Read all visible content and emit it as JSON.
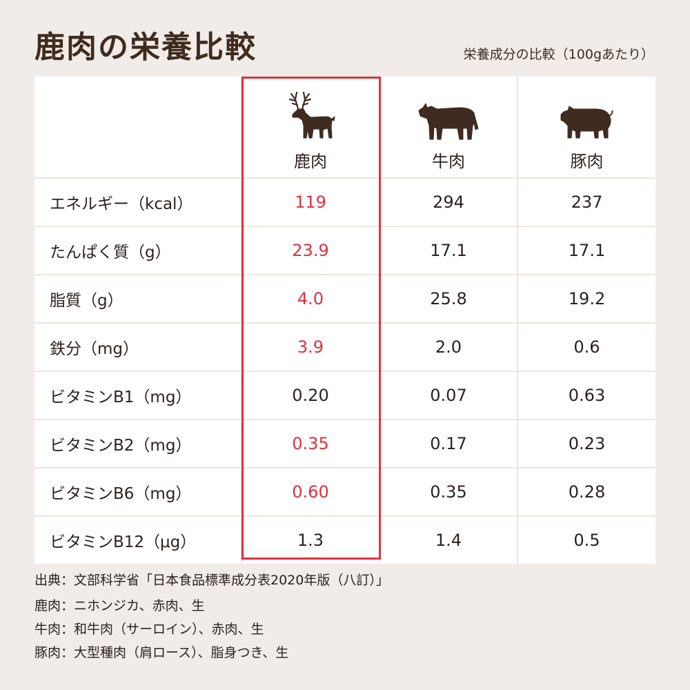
{
  "title": "鹿肉の栄養比較",
  "subtitle": "栄養成分の比較（100gあたり）",
  "colors": {
    "highlight": "#e0313c",
    "animal_icon": "#3f2b20",
    "background": "#f1ece7"
  },
  "table": {
    "columns": [
      {
        "name": "鹿肉",
        "icon": "deer-icon"
      },
      {
        "name": "牛肉",
        "icon": "cow-icon"
      },
      {
        "name": "豚肉",
        "icon": "pig-icon"
      }
    ],
    "rows": [
      {
        "label": "エネルギー（kcal）",
        "values": [
          "119",
          "294",
          "237"
        ],
        "deer_highlight": true
      },
      {
        "label": "たんぱく質（g）",
        "values": [
          "23.9",
          "17.1",
          "17.1"
        ],
        "deer_highlight": true
      },
      {
        "label": "脂質（g）",
        "values": [
          "4.0",
          "25.8",
          "19.2"
        ],
        "deer_highlight": true
      },
      {
        "label": "鉄分（mg）",
        "values": [
          "3.9",
          "2.0",
          "0.6"
        ],
        "deer_highlight": true
      },
      {
        "label": "ビタミンB1（mg）",
        "values": [
          "0.20",
          "0.07",
          "0.63"
        ],
        "deer_highlight": false
      },
      {
        "label": "ビタミンB2（mg）",
        "values": [
          "0.35",
          "0.17",
          "0.23"
        ],
        "deer_highlight": true
      },
      {
        "label": "ビタミンB6（mg）",
        "values": [
          "0.60",
          "0.35",
          "0.28"
        ],
        "deer_highlight": true
      },
      {
        "label": "ビタミンB12（μg）",
        "values": [
          "1.3",
          "1.4",
          "0.5"
        ],
        "deer_highlight": false
      }
    ]
  },
  "source": "出典：文部科学省「日本食品標準成分表2020年版（八訂）」",
  "notes": [
    "鹿肉：ニホンジカ、赤肉、生",
    "牛肉：和牛肉（サーロイン）、赤肉、生",
    "豚肉：大型種肉（肩ロース）、脂身つき、生"
  ]
}
